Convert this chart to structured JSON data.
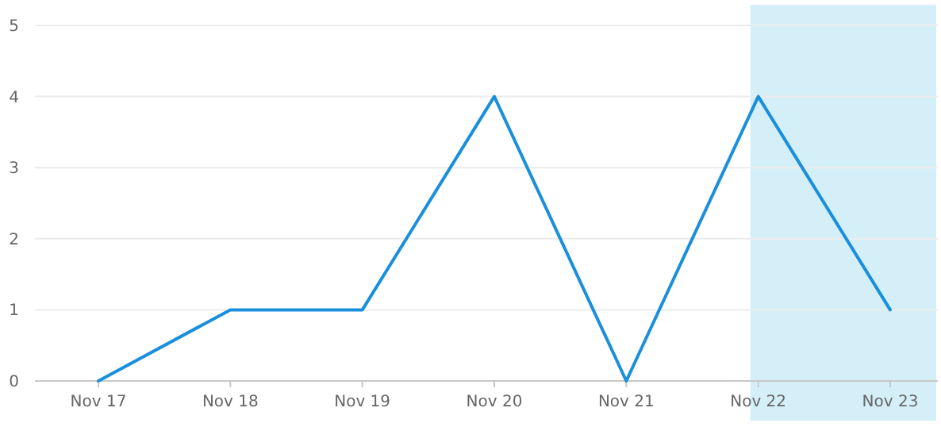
{
  "chart_data": {
    "type": "line",
    "categories": [
      "Nov 17",
      "Nov 18",
      "Nov 19",
      "Nov 20",
      "Nov 21",
      "Nov 22",
      "Nov 23"
    ],
    "series": [
      {
        "color": "#1a8fdc",
        "values": [
          0,
          1,
          1,
          4,
          0,
          4,
          1
        ]
      }
    ],
    "ylim": [
      0,
      5
    ],
    "yticks": [
      0,
      1,
      2,
      3,
      4,
      5
    ],
    "grid": "y",
    "marker": "none",
    "line_style": "solid",
    "bands": [
      {
        "axis": "x",
        "from": "Nov 22",
        "to": "Nov 23",
        "color": "#d5eff9"
      }
    ]
  }
}
